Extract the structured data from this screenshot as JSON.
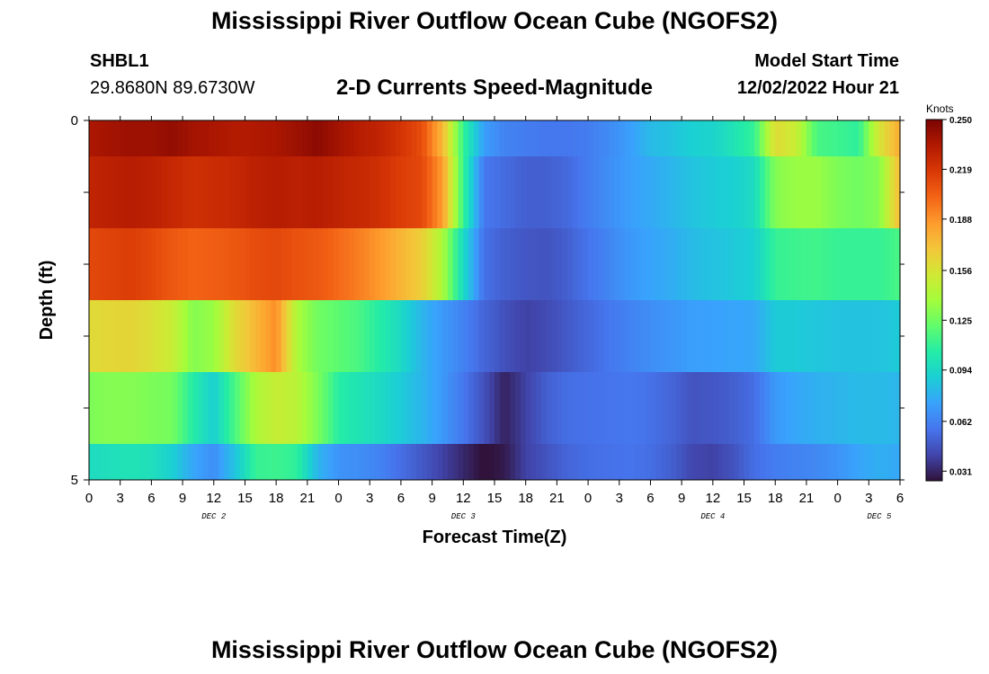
{
  "title": "Mississippi River Outflow Ocean Cube (NGOFS2)",
  "station": {
    "id": "SHBL1",
    "coords": "29.8680N  89.6730W"
  },
  "plot_title": "2-D Currents Speed-Magnitude",
  "model_start": {
    "label": "Model Start Time",
    "value": "12/02/2022 Hour 21"
  },
  "colors": {
    "colormap": [
      "#30123b",
      "#4145ab",
      "#4675ed",
      "#39a2fc",
      "#1bcfd4",
      "#24eca6",
      "#61fc6c",
      "#a4fc3b",
      "#d1e834",
      "#f3c63a",
      "#fe9b2d",
      "#f36315",
      "#d93806",
      "#b11901",
      "#7a0403"
    ]
  },
  "chart_data": {
    "type": "heatmap",
    "title": "2-D Currents Speed-Magnitude",
    "xlabel": "Forecast Time(Z)",
    "ylabel": "Depth (ft)",
    "x_tick_labels": [
      "0",
      "3",
      "6",
      "9",
      "12",
      "15",
      "18",
      "21",
      "0",
      "3",
      "6",
      "9",
      "12",
      "15",
      "18",
      "21",
      "0",
      "3",
      "6",
      "9",
      "12",
      "15",
      "18",
      "21",
      "0",
      "3",
      "6"
    ],
    "x_range_hours": [
      0,
      78
    ],
    "day_labels": [
      {
        "text": "DEC 2",
        "hour": 12
      },
      {
        "text": "DEC 3",
        "hour": 36
      },
      {
        "text": "DEC 4",
        "hour": 60
      },
      {
        "text": "DEC 5",
        "hour": 76
      }
    ],
    "y_tick_labels": [
      "0",
      "5"
    ],
    "ylim": [
      0,
      5
    ],
    "depth_rows": [
      0,
      1,
      2,
      3,
      4,
      5
    ],
    "colorbar": {
      "unit": "Knots",
      "ticks": [
        "0.250",
        "0.219",
        "0.188",
        "0.156",
        "0.125",
        "0.094",
        "0.062",
        "0.031"
      ],
      "range": [
        0.025,
        0.25
      ]
    },
    "anchor_hours": [
      0,
      2,
      4,
      6,
      8,
      10,
      12,
      14,
      16,
      18,
      20,
      22,
      24,
      26,
      28,
      30,
      32,
      34,
      36,
      38,
      40,
      42,
      44,
      46,
      48,
      50,
      52,
      54,
      56,
      58,
      60,
      62,
      64,
      66,
      68,
      70,
      72,
      74,
      76,
      78
    ],
    "speed_knots": [
      [
        0.235,
        0.238,
        0.24,
        0.24,
        0.243,
        0.238,
        0.236,
        0.233,
        0.234,
        0.236,
        0.24,
        0.245,
        0.238,
        0.232,
        0.228,
        0.22,
        0.21,
        0.175,
        0.11,
        0.072,
        0.062,
        0.06,
        0.058,
        0.058,
        0.06,
        0.065,
        0.072,
        0.082,
        0.085,
        0.09,
        0.092,
        0.1,
        0.11,
        0.16,
        0.15,
        0.115,
        0.112,
        0.108,
        0.155,
        0.18
      ],
      [
        0.228,
        0.23,
        0.232,
        0.23,
        0.226,
        0.222,
        0.224,
        0.226,
        0.23,
        0.232,
        0.23,
        0.232,
        0.228,
        0.226,
        0.222,
        0.216,
        0.212,
        0.185,
        0.11,
        0.058,
        0.054,
        0.05,
        0.05,
        0.053,
        0.06,
        0.066,
        0.072,
        0.076,
        0.08,
        0.085,
        0.088,
        0.09,
        0.096,
        0.13,
        0.135,
        0.135,
        0.128,
        0.125,
        0.13,
        0.175
      ],
      [
        0.212,
        0.214,
        0.216,
        0.212,
        0.206,
        0.202,
        0.204,
        0.206,
        0.21,
        0.212,
        0.208,
        0.206,
        0.2,
        0.194,
        0.186,
        0.176,
        0.166,
        0.14,
        0.095,
        0.056,
        0.05,
        0.047,
        0.046,
        0.05,
        0.057,
        0.063,
        0.07,
        0.074,
        0.077,
        0.082,
        0.085,
        0.087,
        0.09,
        0.11,
        0.112,
        0.113,
        0.11,
        0.11,
        0.11,
        0.115
      ],
      [
        0.16,
        0.162,
        0.163,
        0.158,
        0.15,
        0.13,
        0.135,
        0.16,
        0.175,
        0.19,
        0.14,
        0.125,
        0.12,
        0.115,
        0.105,
        0.095,
        0.08,
        0.07,
        0.062,
        0.052,
        0.045,
        0.04,
        0.043,
        0.048,
        0.053,
        0.058,
        0.062,
        0.066,
        0.069,
        0.072,
        0.073,
        0.074,
        0.075,
        0.088,
        0.088,
        0.086,
        0.085,
        0.085,
        0.085,
        0.088
      ],
      [
        0.128,
        0.13,
        0.13,
        0.128,
        0.126,
        0.105,
        0.09,
        0.115,
        0.14,
        0.15,
        0.145,
        0.128,
        0.106,
        0.1,
        0.095,
        0.088,
        0.08,
        0.07,
        0.058,
        0.045,
        0.03,
        0.04,
        0.05,
        0.055,
        0.056,
        0.057,
        0.058,
        0.056,
        0.052,
        0.046,
        0.047,
        0.05,
        0.055,
        0.07,
        0.075,
        0.078,
        0.08,
        0.082,
        0.082,
        0.08
      ],
      [
        0.096,
        0.098,
        0.1,
        0.098,
        0.09,
        0.075,
        0.066,
        0.085,
        0.11,
        0.112,
        0.108,
        0.08,
        0.068,
        0.066,
        0.062,
        0.055,
        0.048,
        0.04,
        0.032,
        0.024,
        0.028,
        0.04,
        0.046,
        0.052,
        0.055,
        0.056,
        0.057,
        0.055,
        0.05,
        0.042,
        0.04,
        0.046,
        0.055,
        0.06,
        0.062,
        0.064,
        0.068,
        0.074,
        0.078,
        0.075
      ]
    ]
  }
}
